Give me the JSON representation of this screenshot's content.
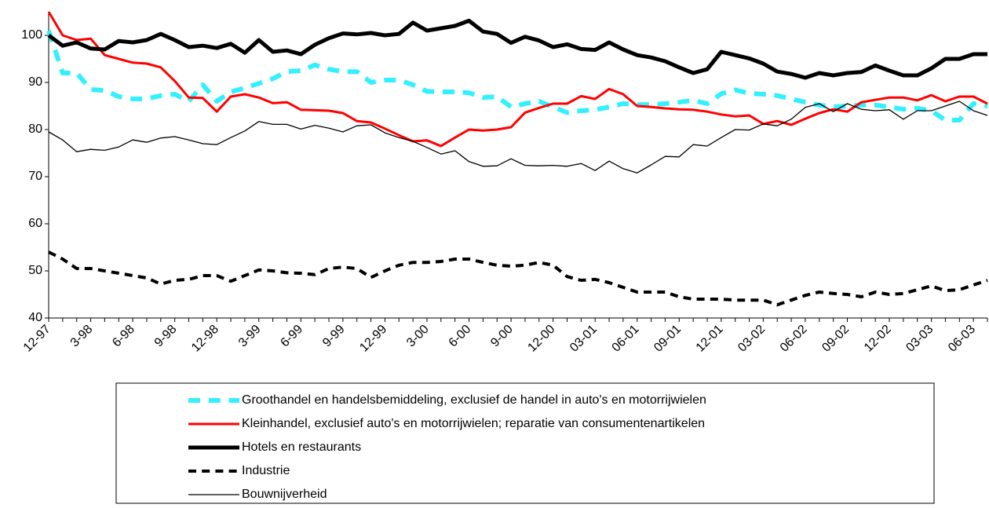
{
  "chart_data": {
    "type": "line",
    "categories": [
      "12-97",
      null,
      null,
      "3-98",
      null,
      null,
      "6-98",
      null,
      null,
      "9-98",
      null,
      null,
      "12-98",
      null,
      null,
      "3-99",
      null,
      null,
      "6-99",
      null,
      null,
      "9-99",
      null,
      null,
      "12-99",
      null,
      null,
      "3-00",
      null,
      null,
      "6-00",
      null,
      null,
      "9-00",
      null,
      null,
      "12-00",
      null,
      null,
      "03-01",
      null,
      null,
      "06-01",
      null,
      null,
      "09-01",
      null,
      null,
      "12-01",
      null,
      null,
      "03-02",
      null,
      null,
      "06-02",
      null,
      null,
      "09-02",
      null,
      null,
      "12-02",
      null,
      null,
      "03-03",
      null,
      null,
      "06-03",
      null
    ],
    "ylim": [
      40,
      105
    ],
    "yticks": [
      40,
      50,
      60,
      70,
      80,
      90,
      100
    ],
    "series": [
      {
        "name": "Groothandel en handelsbemiddeling, exclusief de handel in auto's en motorrijwielen",
        "color": "#33f0ff",
        "width": 6,
        "dashed": true,
        "values": [
          101,
          92,
          92,
          88.5,
          88.3,
          87,
          86.5,
          86.5,
          87.2,
          87.5,
          86,
          89.5,
          86,
          88,
          88.8,
          89.8,
          90.8,
          92.3,
          92.5,
          93.7,
          92.8,
          92.3,
          92.3,
          90,
          90.5,
          90.5,
          89.5,
          88.1,
          88,
          88,
          87.8,
          86.8,
          87,
          84.8,
          85.5,
          86,
          84.8,
          83.6,
          84,
          84.2,
          84.8,
          85.5,
          85.3,
          85.3,
          85.5,
          85.8,
          86.2,
          85.5,
          87.6,
          88.4,
          87.7,
          87.5,
          87.2,
          86.5,
          85.8,
          85.2,
          84.8,
          85,
          85.2,
          85.2,
          84.8,
          84.3,
          84.5,
          84,
          82,
          82,
          85.5,
          85
        ]
      },
      {
        "name": "Kleinhandel, exclusief auto's en motorrijwielen; reparatie van consumentenartikelen",
        "color": "#ff0000",
        "width": 3,
        "dashed": false,
        "values": [
          105,
          100,
          99,
          99.3,
          95.8,
          95,
          94.2,
          94,
          93.2,
          90.3,
          86.8,
          86.7,
          83.8,
          87,
          87.5,
          86.8,
          85.6,
          85.8,
          84.2,
          84.1,
          84,
          83.5,
          81.8,
          81.5,
          80.2,
          78.8,
          77.5,
          77.7,
          76.5,
          78.3,
          80,
          79.8,
          80,
          80.5,
          83.6,
          84.6,
          85.5,
          85.5,
          87.1,
          86.5,
          88.6,
          87.5,
          85,
          84.8,
          84.5,
          84.3,
          84.2,
          83.8,
          83.2,
          82.8,
          83,
          81.2,
          81.8,
          81,
          82.3,
          83.5,
          84.3,
          83.8,
          85.8,
          86.3,
          86.8,
          86.8,
          86.2,
          87.3,
          86,
          87,
          87,
          85.5
        ]
      },
      {
        "name": "Hotels en restaurants",
        "color": "#000000",
        "width": 5,
        "dashed": false,
        "values": [
          100,
          97.8,
          98.5,
          97.2,
          97,
          98.8,
          98.5,
          99,
          100.3,
          99,
          97.5,
          97.8,
          97.3,
          98.2,
          96.3,
          99,
          96.5,
          96.8,
          96,
          98,
          99.4,
          100.4,
          100.2,
          100.5,
          100,
          100.3,
          102.7,
          101,
          101.5,
          102,
          103.1,
          100.8,
          100.3,
          98.4,
          99.7,
          98.9,
          97.5,
          98.1,
          97.1,
          96.9,
          98.5,
          97,
          95.8,
          95.3,
          94.5,
          93.2,
          92,
          92.8,
          96.5,
          95.8,
          95.1,
          94,
          92.3,
          91.8,
          91,
          92,
          91.5,
          92,
          92.2,
          93.6,
          92.5,
          91.5,
          91.5,
          93,
          95,
          95,
          96,
          96
        ]
      },
      {
        "name": "Industrie",
        "color": "#000000",
        "width": 4,
        "dashed": true,
        "values": [
          54,
          52.5,
          50.5,
          50.5,
          50,
          49.5,
          49,
          48.5,
          47.2,
          48,
          48.2,
          49,
          49,
          47.8,
          49,
          50.2,
          50,
          49.6,
          49.5,
          49.2,
          50.5,
          50.8,
          50.5,
          48.6,
          50,
          51.2,
          51.8,
          51.8,
          52,
          52.5,
          52.5,
          51.8,
          51.2,
          51,
          51.2,
          51.8,
          51.2,
          48.8,
          48,
          48.2,
          47.5,
          46.5,
          45.5,
          45.5,
          45.5,
          44.5,
          44,
          44,
          44,
          43.8,
          43.8,
          43.8,
          42.8,
          43.8,
          44.8,
          45.5,
          45.2,
          45,
          44.5,
          45.5,
          45,
          45.2,
          46,
          46.8,
          45.8,
          46,
          47,
          48
        ]
      },
      {
        "name": "Bouwnijverheid",
        "color": "#000000",
        "width": 1.3,
        "dashed": false,
        "values": [
          79.5,
          77.8,
          75.3,
          75.8,
          75.6,
          76.3,
          77.8,
          77.3,
          78.2,
          78.5,
          77.8,
          77,
          76.8,
          78.3,
          79.7,
          81.7,
          81.1,
          81.1,
          80.1,
          80.9,
          80.3,
          79.5,
          80.8,
          81,
          79.3,
          78.3,
          77.5,
          76.2,
          74.8,
          75.5,
          73.2,
          72.2,
          72.3,
          73.8,
          72.4,
          72.3,
          72.4,
          72.2,
          72.8,
          71.3,
          73.3,
          71.7,
          70.8,
          72.5,
          74.3,
          74.2,
          76.8,
          76.5,
          78.3,
          80,
          79.9,
          81.2,
          80.8,
          82.2,
          84.7,
          85.5,
          83.8,
          85.5,
          84.3,
          84,
          84.2,
          82.2,
          84,
          84,
          85,
          86,
          84,
          83
        ]
      }
    ]
  }
}
